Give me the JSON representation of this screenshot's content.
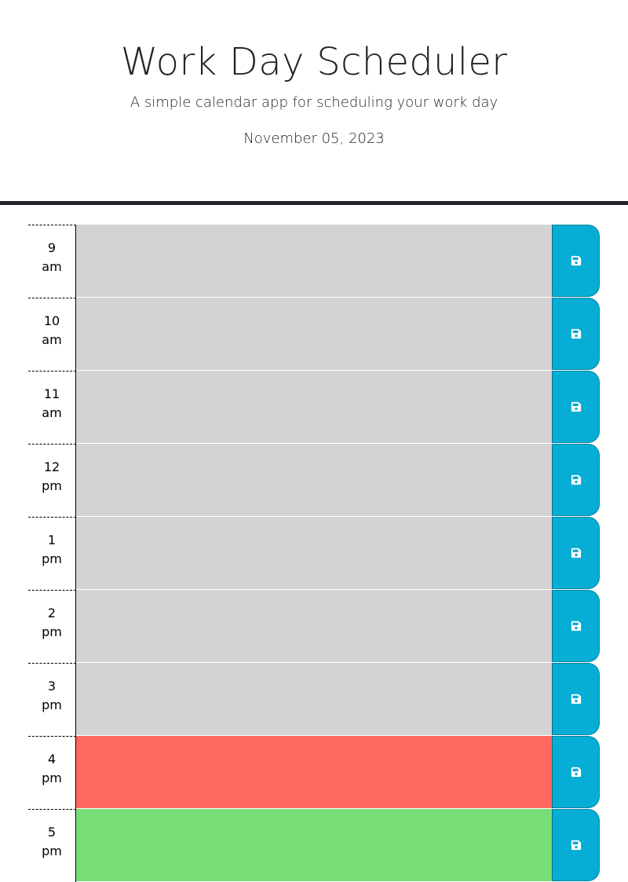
{
  "header": {
    "title": "Work Day Scheduler",
    "subtitle": "A simple calendar app for scheduling your work day",
    "current_date": "November 05, 2023"
  },
  "colors": {
    "past": "#d3d3d3",
    "present": "#ff6961",
    "future": "#77dd77",
    "save_button": "#06aed5",
    "header_rule": "#212529"
  },
  "save_icon": "floppy-disk-icon",
  "hours": [
    {
      "hour": "9",
      "period": "am",
      "state": "past",
      "description": ""
    },
    {
      "hour": "10",
      "period": "am",
      "state": "past",
      "description": ""
    },
    {
      "hour": "11",
      "period": "am",
      "state": "past",
      "description": ""
    },
    {
      "hour": "12",
      "period": "pm",
      "state": "past",
      "description": ""
    },
    {
      "hour": "1",
      "period": "pm",
      "state": "past",
      "description": ""
    },
    {
      "hour": "2",
      "period": "pm",
      "state": "past",
      "description": ""
    },
    {
      "hour": "3",
      "period": "pm",
      "state": "past",
      "description": ""
    },
    {
      "hour": "4",
      "period": "pm",
      "state": "present",
      "description": ""
    },
    {
      "hour": "5",
      "period": "pm",
      "state": "future",
      "description": ""
    }
  ]
}
